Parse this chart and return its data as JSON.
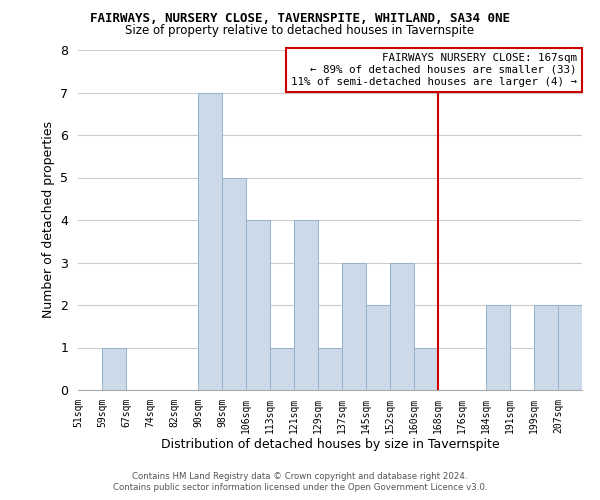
{
  "title": "FAIRWAYS, NURSERY CLOSE, TAVERNSPITE, WHITLAND, SA34 0NE",
  "subtitle": "Size of property relative to detached houses in Tavernspite",
  "xlabel": "Distribution of detached houses by size in Tavernspite",
  "ylabel": "Number of detached properties",
  "bin_labels": [
    "51sqm",
    "59sqm",
    "67sqm",
    "74sqm",
    "82sqm",
    "90sqm",
    "98sqm",
    "106sqm",
    "113sqm",
    "121sqm",
    "129sqm",
    "137sqm",
    "145sqm",
    "152sqm",
    "160sqm",
    "168sqm",
    "176sqm",
    "184sqm",
    "191sqm",
    "199sqm",
    "207sqm"
  ],
  "bar_heights": [
    0,
    1,
    0,
    0,
    0,
    7,
    5,
    4,
    1,
    4,
    1,
    3,
    2,
    3,
    1,
    0,
    0,
    2,
    0,
    2,
    2
  ],
  "bar_color": "#ccd9e8",
  "bar_edge_color": "#93b4cc",
  "vline_x": 15,
  "vline_color": "#cc0000",
  "ylim": [
    0,
    8
  ],
  "yticks": [
    0,
    1,
    2,
    3,
    4,
    5,
    6,
    7,
    8
  ],
  "annotation_title": "FAIRWAYS NURSERY CLOSE: 167sqm",
  "annotation_line1": "← 89% of detached houses are smaller (33)",
  "annotation_line2": "11% of semi-detached houses are larger (4) →",
  "footer1": "Contains HM Land Registry data © Crown copyright and database right 2024.",
  "footer2": "Contains public sector information licensed under the Open Government Licence v3.0.",
  "background_color": "#ffffff",
  "grid_color": "#cccccc"
}
